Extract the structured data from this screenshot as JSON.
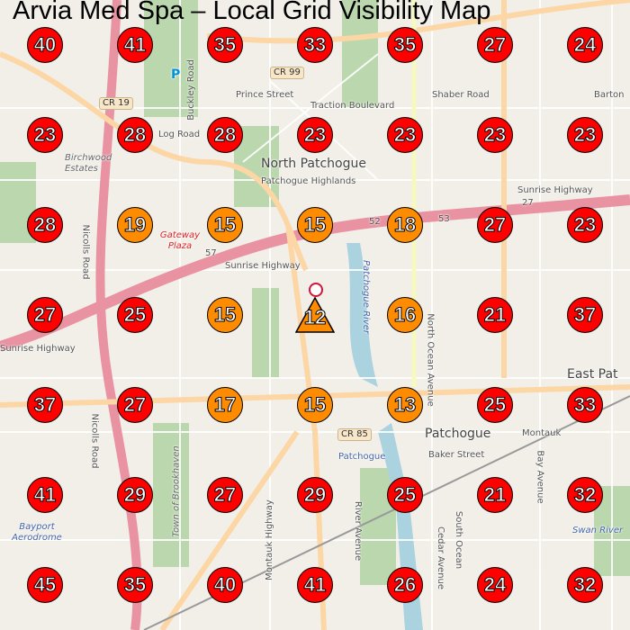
{
  "title": "Arvia Med Spa – Local Grid Visibility Map",
  "colors": {
    "high_rank": "#ff0000",
    "mid_rank": "#ff8c00",
    "center": "#ff8c00",
    "pin": "#d2143a"
  },
  "grid": [
    [
      40,
      41,
      35,
      33,
      35,
      27,
      24
    ],
    [
      23,
      28,
      28,
      23,
      23,
      23,
      23
    ],
    [
      28,
      19,
      15,
      15,
      18,
      27,
      23
    ],
    [
      27,
      25,
      15,
      12,
      16,
      21,
      37
    ],
    [
      37,
      27,
      17,
      15,
      13,
      25,
      33
    ],
    [
      41,
      29,
      27,
      29,
      25,
      21,
      32
    ],
    [
      45,
      35,
      40,
      41,
      26,
      24,
      32
    ]
  ],
  "center_rank": "12",
  "map_labels": {
    "cr99": "CR 99",
    "cr19": "CR 19",
    "cr85": "CR 85",
    "r52": "52",
    "r53": "53",
    "r57": "57",
    "r27": "27",
    "north_patchogue": "North Patchogue",
    "patchogue_highlands": "Patchogue Highlands",
    "birchwood": "Birchwood Estates",
    "gateway": "Gateway Plaza",
    "patchogue": "Patchogue",
    "patchogue_station": "Patchogue",
    "east_pat": "East Pat",
    "bayport": "Bayport Aerodrome",
    "brookhaven": "Town of Brookhaven",
    "patchogue_river": "Patchogue River",
    "sunrise_w": "Sunrise Highway",
    "sunrise_e": "Sunrise Highway",
    "sunrise_mid": "Sunrise Highway",
    "nicolls1": "Nicolls Road",
    "nicolls2": "Nicolls Road",
    "log_road": "Log Road",
    "prince": "Prince Street",
    "traction": "Traction Boulevard",
    "shaber": "Shaber Road",
    "barton": "Barton",
    "buckley": "Buckley Road",
    "north_ocean": "North Ocean Avenue",
    "baker": "Baker Street",
    "montauk_hwy": "Montauk Highway",
    "montauk": "Montauk",
    "river_ave": "River Avenue",
    "cedar": "Cedar Avenue",
    "south_ocean": "South Ocean",
    "bay_ave": "Bay Avenue",
    "swan": "Swan River",
    "parking": "P"
  }
}
